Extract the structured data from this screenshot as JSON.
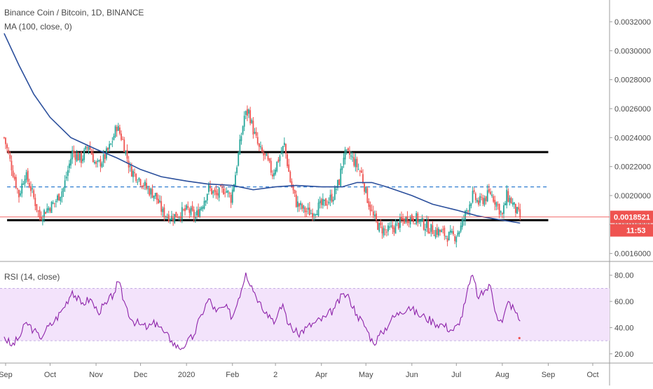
{
  "header": {
    "title": "Binance Coin / Bitcoin, 1D, BINANCE",
    "ma_label": "MA (100, close, 0)",
    "rsi_label": "RSI (14, close)"
  },
  "price_badge": {
    "price": "0.0018521",
    "countdown": "11:53"
  },
  "colors": {
    "up": "#26a69a",
    "down": "#ef5350",
    "ma": "#2b4f9c",
    "rsi": "#8e24aa",
    "rsi_band": "#f3e3fb",
    "price_line": "#f05c5c",
    "level_line": "#000000",
    "dashed_level": "#2e7bd0",
    "axis_text": "#4a4a4a",
    "badge": "#ef5350"
  },
  "chart_data": [
    {
      "type": "candlestick",
      "pane": "price",
      "symbol": "Binance Coin / Bitcoin, 1D, BINANCE",
      "ylim": [
        0.00155,
        0.00335
      ],
      "y_ticks": [
        "0.0016000",
        "0.0018000",
        "0.0020000",
        "0.0022000",
        "0.0024000",
        "0.0026000",
        "0.0028000",
        "0.0030000",
        "0.0032000"
      ],
      "x_ticks": [
        "Sep",
        "Oct",
        "Nov",
        "Dec",
        "2020",
        "Feb",
        "2",
        "Apr",
        "May",
        "Jun",
        "Jul",
        "Aug",
        "Sep",
        "Oct"
      ],
      "x_tick_dates": [
        "2019-09-01",
        "2019-10-01",
        "2019-11-01",
        "2019-12-01",
        "2020-01-01",
        "2020-02-01",
        "2020-03-01",
        "2020-04-01",
        "2020-05-01",
        "2020-06-01",
        "2020-07-01",
        "2020-08-01",
        "2020-09-01",
        "2020-10-01"
      ],
      "close_path": [
        [
          "2019-08-31",
          0.0024
        ],
        [
          "2019-09-05",
          0.0022
        ],
        [
          "2019-09-10",
          0.002
        ],
        [
          "2019-09-14",
          0.00215
        ],
        [
          "2019-09-18",
          0.00205
        ],
        [
          "2019-09-24",
          0.00185
        ],
        [
          "2019-09-28",
          0.0019
        ],
        [
          "2019-10-04",
          0.00195
        ],
        [
          "2019-10-10",
          0.00205
        ],
        [
          "2019-10-16",
          0.0023
        ],
        [
          "2019-10-22",
          0.00225
        ],
        [
          "2019-10-27",
          0.00235
        ],
        [
          "2019-11-01",
          0.0022
        ],
        [
          "2019-11-06",
          0.00225
        ],
        [
          "2019-11-11",
          0.00235
        ],
        [
          "2019-11-15",
          0.00248
        ],
        [
          "2019-11-19",
          0.00238
        ],
        [
          "2019-11-24",
          0.00218
        ],
        [
          "2019-11-30",
          0.00212
        ],
        [
          "2019-12-05",
          0.00205
        ],
        [
          "2019-12-11",
          0.002
        ],
        [
          "2019-12-16",
          0.00188
        ],
        [
          "2019-12-22",
          0.00185
        ],
        [
          "2019-12-28",
          0.00188
        ],
        [
          "2020-01-02",
          0.0019
        ],
        [
          "2020-01-07",
          0.00185
        ],
        [
          "2020-01-12",
          0.00195
        ],
        [
          "2020-01-16",
          0.00205
        ],
        [
          "2020-01-21",
          0.002
        ],
        [
          "2020-01-27",
          0.00205
        ],
        [
          "2020-01-31",
          0.00198
        ],
        [
          "2020-02-03",
          0.00215
        ],
        [
          "2020-02-06",
          0.00235
        ],
        [
          "2020-02-09",
          0.00255
        ],
        [
          "2020-02-12",
          0.00258
        ],
        [
          "2020-02-15",
          0.00245
        ],
        [
          "2020-02-19",
          0.00232
        ],
        [
          "2020-02-24",
          0.00225
        ],
        [
          "2020-02-28",
          0.00215
        ],
        [
          "2020-03-03",
          0.00225
        ],
        [
          "2020-03-07",
          0.00235
        ],
        [
          "2020-03-11",
          0.0021
        ],
        [
          "2020-03-15",
          0.00195
        ],
        [
          "2020-03-20",
          0.0019
        ],
        [
          "2020-03-25",
          0.00188
        ],
        [
          "2020-03-30",
          0.00192
        ],
        [
          "2020-04-04",
          0.00195
        ],
        [
          "2020-04-09",
          0.002
        ],
        [
          "2020-04-13",
          0.0021
        ],
        [
          "2020-04-16",
          0.00228
        ],
        [
          "2020-04-20",
          0.00228
        ],
        [
          "2020-04-24",
          0.00222
        ],
        [
          "2020-04-28",
          0.00215
        ],
        [
          "2020-05-02",
          0.00198
        ],
        [
          "2020-05-06",
          0.00185
        ],
        [
          "2020-05-10",
          0.00178
        ],
        [
          "2020-05-15",
          0.00175
        ],
        [
          "2020-05-20",
          0.00178
        ],
        [
          "2020-05-25",
          0.00182
        ],
        [
          "2020-05-30",
          0.00185
        ],
        [
          "2020-06-04",
          0.00184
        ],
        [
          "2020-06-09",
          0.0018
        ],
        [
          "2020-06-15",
          0.00176
        ],
        [
          "2020-06-20",
          0.00175
        ],
        [
          "2020-06-25",
          0.00172
        ],
        [
          "2020-06-30",
          0.00172
        ],
        [
          "2020-07-04",
          0.00178
        ],
        [
          "2020-07-08",
          0.0019
        ],
        [
          "2020-07-12",
          0.002
        ],
        [
          "2020-07-16",
          0.00195
        ],
        [
          "2020-07-20",
          0.00198
        ],
        [
          "2020-07-24",
          0.00202
        ],
        [
          "2020-07-28",
          0.00195
        ],
        [
          "2020-08-01",
          0.00186
        ],
        [
          "2020-08-04",
          0.002
        ],
        [
          "2020-08-07",
          0.00196
        ],
        [
          "2020-08-10",
          0.0019
        ],
        [
          "2020-08-13",
          0.00185
        ]
      ],
      "ma": {
        "name": "MA (100, close, 0)",
        "points": [
          [
            "2019-08-31",
            0.00312
          ],
          [
            "2019-09-10",
            0.0029
          ],
          [
            "2019-09-20",
            0.0027
          ],
          [
            "2019-10-01",
            0.00254
          ],
          [
            "2019-10-15",
            0.0024
          ],
          [
            "2019-11-01",
            0.00232
          ],
          [
            "2019-11-15",
            0.00226
          ],
          [
            "2019-12-01",
            0.00218
          ],
          [
            "2019-12-15",
            0.00213
          ],
          [
            "2020-01-01",
            0.0021
          ],
          [
            "2020-01-15",
            0.00208
          ],
          [
            "2020-02-01",
            0.00207
          ],
          [
            "2020-02-15",
            0.00204
          ],
          [
            "2020-03-01",
            0.00206
          ],
          [
            "2020-03-15",
            0.00207
          ],
          [
            "2020-04-01",
            0.00206
          ],
          [
            "2020-04-15",
            0.00206
          ],
          [
            "2020-04-25",
            0.00209
          ],
          [
            "2020-05-05",
            0.00209
          ],
          [
            "2020-05-15",
            0.00206
          ],
          [
            "2020-06-01",
            0.002
          ],
          [
            "2020-06-15",
            0.00194
          ],
          [
            "2020-07-01",
            0.0019
          ],
          [
            "2020-07-15",
            0.00186
          ],
          [
            "2020-08-01",
            0.00183
          ],
          [
            "2020-08-13",
            0.00181
          ]
        ]
      },
      "levels": [
        {
          "price": 0.0023,
          "from": "2019-09-02",
          "to": "2020-09-01",
          "style": "solid"
        },
        {
          "price": 0.00183,
          "from": "2019-09-02",
          "to": "2020-09-01",
          "style": "solid"
        },
        {
          "price": 0.00206,
          "from": "2019-09-02",
          "to": "2020-09-01",
          "style": "dashed"
        }
      ],
      "current_price": 0.0018521
    },
    {
      "type": "line",
      "pane": "rsi",
      "series": [
        {
          "name": "RSI (14, close)",
          "points": [
            [
              "2019-08-31",
              33
            ],
            [
              "2019-09-05",
              26
            ],
            [
              "2019-09-10",
              32
            ],
            [
              "2019-09-15",
              44
            ],
            [
              "2019-09-20",
              38
            ],
            [
              "2019-09-24",
              32
            ],
            [
              "2019-09-28",
              38
            ],
            [
              "2019-10-04",
              45
            ],
            [
              "2019-10-10",
              55
            ],
            [
              "2019-10-16",
              68
            ],
            [
              "2019-10-22",
              58
            ],
            [
              "2019-10-28",
              62
            ],
            [
              "2019-11-02",
              52
            ],
            [
              "2019-11-08",
              58
            ],
            [
              "2019-11-13",
              66
            ],
            [
              "2019-11-16",
              75
            ],
            [
              "2019-11-20",
              60
            ],
            [
              "2019-11-25",
              46
            ],
            [
              "2019-12-01",
              42
            ],
            [
              "2019-12-06",
              40
            ],
            [
              "2019-12-12",
              44
            ],
            [
              "2019-12-17",
              36
            ],
            [
              "2019-12-22",
              30
            ],
            [
              "2019-12-27",
              24
            ],
            [
              "2020-01-01",
              28
            ],
            [
              "2020-01-06",
              34
            ],
            [
              "2020-01-11",
              50
            ],
            [
              "2020-01-16",
              62
            ],
            [
              "2020-01-21",
              52
            ],
            [
              "2020-01-27",
              56
            ],
            [
              "2020-02-01",
              48
            ],
            [
              "2020-02-05",
              62
            ],
            [
              "2020-02-10",
              82
            ],
            [
              "2020-02-14",
              72
            ],
            [
              "2020-02-19",
              60
            ],
            [
              "2020-02-24",
              52
            ],
            [
              "2020-03-01",
              45
            ],
            [
              "2020-03-06",
              58
            ],
            [
              "2020-03-10",
              42
            ],
            [
              "2020-03-16",
              35
            ],
            [
              "2020-03-22",
              40
            ],
            [
              "2020-03-28",
              44
            ],
            [
              "2020-04-04",
              48
            ],
            [
              "2020-04-10",
              55
            ],
            [
              "2020-04-16",
              66
            ],
            [
              "2020-04-20",
              62
            ],
            [
              "2020-04-25",
              50
            ],
            [
              "2020-05-01",
              40
            ],
            [
              "2020-05-06",
              28
            ],
            [
              "2020-05-12",
              36
            ],
            [
              "2020-05-18",
              46
            ],
            [
              "2020-05-24",
              52
            ],
            [
              "2020-05-30",
              56
            ],
            [
              "2020-06-05",
              50
            ],
            [
              "2020-06-10",
              48
            ],
            [
              "2020-06-16",
              44
            ],
            [
              "2020-06-22",
              42
            ],
            [
              "2020-06-28",
              38
            ],
            [
              "2020-07-03",
              42
            ],
            [
              "2020-07-08",
              66
            ],
            [
              "2020-07-12",
              80
            ],
            [
              "2020-07-16",
              62
            ],
            [
              "2020-07-20",
              68
            ],
            [
              "2020-07-24",
              72
            ],
            [
              "2020-07-28",
              50
            ],
            [
              "2020-08-01",
              44
            ],
            [
              "2020-08-05",
              60
            ],
            [
              "2020-08-09",
              54
            ],
            [
              "2020-08-13",
              45
            ]
          ]
        }
      ],
      "ylim": [
        14,
        90
      ],
      "band": [
        30,
        70
      ],
      "y_ticks": [
        "20.00",
        "40.00",
        "60.00",
        "80.00"
      ]
    }
  ]
}
